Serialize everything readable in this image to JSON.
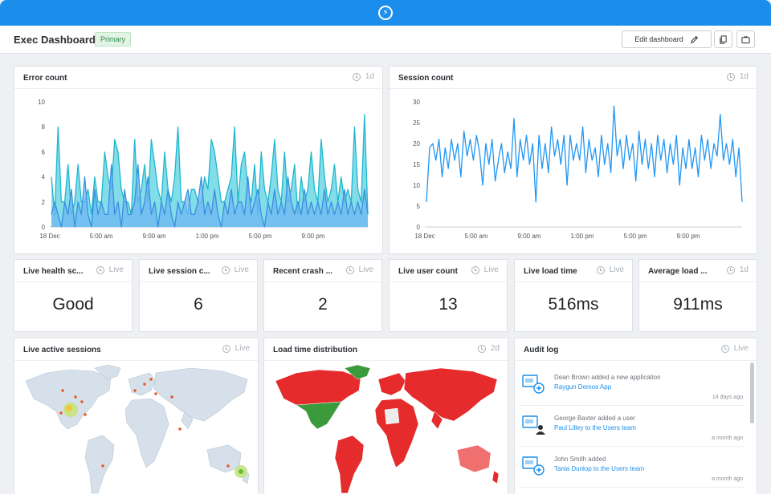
{
  "header": {
    "title": "Exec Dashboard",
    "badge": "Primary",
    "edit_label": "Edit dashboard",
    "icons": [
      "bolt-logo-icon",
      "pencil-icon",
      "copy-icon",
      "tv-icon"
    ]
  },
  "colors": {
    "brand": "#1a8eea",
    "error_series_1": "#4fcfdf",
    "error_series_2": "#6fb6f2",
    "session_line": "#2196f3",
    "map_red": "#e52b2b",
    "map_green": "#3a9a3c"
  },
  "panels": {
    "error_count": {
      "title": "Error count",
      "range": "1d"
    },
    "session_count": {
      "title": "Session count",
      "range": "1d"
    },
    "live_health": {
      "title": "Live health sc...",
      "meta": "Live",
      "value": "Good"
    },
    "live_session": {
      "title": "Live session c...",
      "meta": "Live",
      "value": "6"
    },
    "recent_crash": {
      "title": "Recent crash ...",
      "meta": "Live",
      "value": "2"
    },
    "live_user": {
      "title": "Live user count",
      "meta": "Live",
      "value": "13"
    },
    "live_load": {
      "title": "Live load time",
      "meta": "Live",
      "value": "516ms"
    },
    "avg_load": {
      "title": "Average load ...",
      "meta": "1d",
      "value": "911ms"
    },
    "active_sessions": {
      "title": "Live active sessions",
      "meta": "Live"
    },
    "load_dist": {
      "title": "Load time distribution",
      "meta": "2d"
    },
    "audit": {
      "title": "Audit log",
      "meta": "Live"
    }
  },
  "audit": [
    {
      "text": "Dean Brown added a new application",
      "link": "Raygun Demos App",
      "time": "14 days ago"
    },
    {
      "text": "George Baxter added a user",
      "link": "Paul Lilley to the Users team",
      "time": "a month ago"
    },
    {
      "text": "John Smith added",
      "link": "Tania Dunlop to the Users team",
      "time": "a month ago"
    }
  ],
  "chart_data": [
    {
      "type": "area",
      "title": "Error count",
      "x_ticks": [
        "18 Dec",
        "5:00 am",
        "9:00 am",
        "1:00 pm",
        "5:00 pm",
        "9:00 pm"
      ],
      "ylim": [
        0,
        10
      ],
      "y_ticks": [
        0,
        2,
        4,
        6,
        8,
        10
      ],
      "series": [
        {
          "values": [
            4,
            1,
            8,
            2,
            2,
            5,
            1,
            2,
            5,
            2,
            2,
            3,
            1,
            4,
            2,
            2,
            6,
            4,
            3,
            7,
            6,
            3,
            2,
            2,
            1,
            7,
            2,
            3,
            5,
            2,
            7,
            5,
            3,
            2,
            6,
            3,
            2,
            4,
            8,
            2,
            2,
            1,
            3,
            3,
            2,
            2,
            4,
            3,
            7,
            6,
            4,
            2,
            2,
            3,
            4,
            8,
            2,
            5,
            6,
            3,
            2,
            5,
            1,
            6,
            3,
            2,
            4,
            7,
            3,
            2,
            6,
            2,
            3,
            5,
            1,
            4,
            2,
            3,
            6,
            3,
            2,
            7,
            4,
            2,
            3,
            5,
            2,
            4,
            2,
            3,
            2,
            8,
            3,
            2,
            9,
            1
          ]
        },
        {
          "values": [
            1,
            2,
            1,
            0,
            2,
            1,
            3,
            0,
            2,
            1,
            4,
            1,
            0,
            3,
            1,
            2,
            1,
            1,
            5,
            1,
            2,
            0,
            3,
            1,
            1,
            2,
            5,
            1,
            2,
            4,
            1,
            2,
            0,
            2,
            1,
            3,
            1,
            0,
            2,
            1,
            2,
            3,
            1,
            1,
            2,
            4,
            1,
            2,
            1,
            3,
            1,
            0,
            2,
            1,
            3,
            1,
            2,
            2,
            1,
            4,
            1,
            2,
            3,
            1,
            0,
            2,
            1,
            3,
            1,
            2,
            1,
            4,
            2,
            1,
            2,
            1,
            3,
            1,
            2,
            1,
            2,
            1,
            3,
            1,
            2,
            1,
            2,
            1,
            3,
            1,
            2,
            1,
            2,
            1,
            3,
            1
          ]
        }
      ]
    },
    {
      "type": "line",
      "title": "Session count",
      "x_ticks": [
        "18 Dec",
        "5:00 am",
        "9:00 am",
        "1:00 pm",
        "5:00 pm",
        "9:00 pm"
      ],
      "ylim": [
        0,
        30
      ],
      "y_ticks": [
        0,
        5,
        10,
        15,
        20,
        25,
        30
      ],
      "series": [
        {
          "values": [
            6,
            19,
            20,
            16,
            21,
            12,
            19,
            14,
            21,
            16,
            20,
            12,
            23,
            17,
            21,
            16,
            22,
            18,
            10,
            20,
            15,
            21,
            11,
            16,
            20,
            13,
            18,
            14,
            26,
            12,
            21,
            16,
            22,
            15,
            20,
            6,
            22,
            14,
            20,
            13,
            24,
            17,
            21,
            15,
            22,
            10,
            22,
            16,
            20,
            16,
            24,
            13,
            21,
            16,
            19,
            12,
            22,
            15,
            20,
            13,
            29,
            17,
            21,
            14,
            22,
            16,
            20,
            11,
            23,
            15,
            21,
            14,
            20,
            12,
            22,
            16,
            21,
            13,
            20,
            15,
            22,
            10,
            19,
            14,
            21,
            14,
            19,
            12,
            22,
            16,
            21,
            14,
            20,
            17,
            27,
            16,
            20,
            15,
            21,
            12,
            19,
            6
          ]
        }
      ]
    }
  ]
}
